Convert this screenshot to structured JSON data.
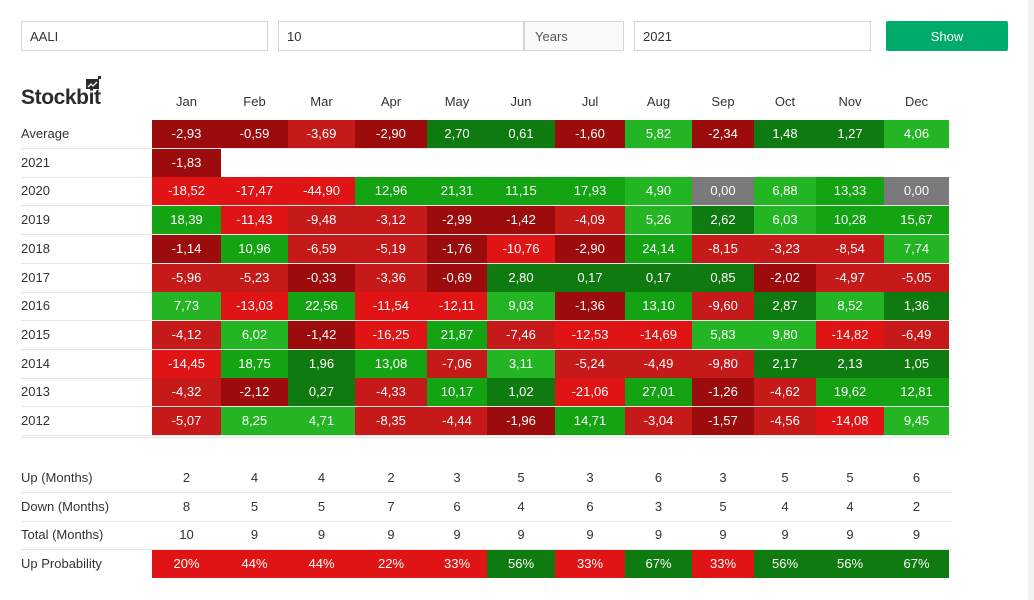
{
  "form": {
    "ticker": "AALI",
    "years_count": "10",
    "years_label": "Years",
    "year": "2021",
    "show_label": "Show"
  },
  "logo": {
    "text": "Stockbit"
  },
  "months": [
    "Jan",
    "Feb",
    "Mar",
    "Apr",
    "May",
    "Jun",
    "Jul",
    "Aug",
    "Sep",
    "Oct",
    "Nov",
    "Dec"
  ],
  "colors": {
    "pos_strong": "#13a313",
    "pos_mid": "#23b523",
    "pos_dark": "#0f7a0f",
    "neg_strong": "#e01414",
    "neg_mid": "#c61a1a",
    "neg_dark": "#9c0c0c",
    "zero": "#7a7a7a"
  },
  "rows": [
    {
      "label": "Average",
      "values": [
        "-2,93",
        "-0,59",
        "-3,69",
        "-2,90",
        "2,70",
        "0,61",
        "-1,60",
        "5,82",
        "-2,34",
        "1,48",
        "1,27",
        "4,06"
      ]
    },
    {
      "label": "2021",
      "values": [
        "-1,83"
      ]
    },
    {
      "label": "2020",
      "values": [
        "-18,52",
        "-17,47",
        "-44,90",
        "12,96",
        "21,31",
        "11,15",
        "17,93",
        "4,90",
        "0,00",
        "6,88",
        "13,33",
        "0,00"
      ]
    },
    {
      "label": "2019",
      "values": [
        "18,39",
        "-11,43",
        "-9,48",
        "-3,12",
        "-2,99",
        "-1,42",
        "-4,09",
        "5,26",
        "2,62",
        "6,03",
        "10,28",
        "15,67"
      ]
    },
    {
      "label": "2018",
      "values": [
        "-1,14",
        "10,96",
        "-6,59",
        "-5,19",
        "-1,76",
        "-10,76",
        "-2,90",
        "24,14",
        "-8,15",
        "-3,23",
        "-8,54",
        "7,74"
      ]
    },
    {
      "label": "2017",
      "values": [
        "-5,96",
        "-5,23",
        "-0,33",
        "-3,36",
        "-0,69",
        "2,80",
        "0,17",
        "0,17",
        "0,85",
        "-2,02",
        "-4,97",
        "-5,05"
      ]
    },
    {
      "label": "2016",
      "values": [
        "7,73",
        "-13,03",
        "22,56",
        "-11,54",
        "-12,11",
        "9,03",
        "-1,36",
        "13,10",
        "-9,60",
        "2,87",
        "8,52",
        "1,36"
      ]
    },
    {
      "label": "2015",
      "values": [
        "-4,12",
        "6,02",
        "-1,42",
        "-16,25",
        "21,87",
        "-7,46",
        "-12,53",
        "-14,69",
        "5,83",
        "9,80",
        "-14,82",
        "-6,49"
      ]
    },
    {
      "label": "2014",
      "values": [
        "-14,45",
        "18,75",
        "1,96",
        "13,08",
        "-7,06",
        "3,11",
        "-5,24",
        "-4,49",
        "-9,80",
        "2,17",
        "2,13",
        "1,05"
      ]
    },
    {
      "label": "2013",
      "values": [
        "-4,32",
        "-2,12",
        "0,27",
        "-4,33",
        "10,17",
        "1,02",
        "-21,06",
        "27,01",
        "-1,26",
        "-4,62",
        "19,62",
        "12,81"
      ]
    },
    {
      "label": "2012",
      "values": [
        "-5,07",
        "8,25",
        "4,71",
        "-8,35",
        "-4,44",
        "-1,96",
        "14,71",
        "-3,04",
        "-1,57",
        "-4,56",
        "-14,08",
        "9,45"
      ]
    }
  ],
  "summary": [
    {
      "label": "Up (Months)",
      "values": [
        "2",
        "4",
        "4",
        "2",
        "3",
        "5",
        "3",
        "6",
        "3",
        "5",
        "5",
        "6"
      ]
    },
    {
      "label": "Down (Months)",
      "values": [
        "8",
        "5",
        "5",
        "7",
        "6",
        "4",
        "6",
        "3",
        "5",
        "4",
        "4",
        "2"
      ]
    },
    {
      "label": "Total (Months)",
      "values": [
        "10",
        "9",
        "9",
        "9",
        "9",
        "9",
        "9",
        "9",
        "9",
        "9",
        "9",
        "9"
      ]
    }
  ],
  "probability": {
    "label": "Up Probability",
    "values": [
      "20%",
      "44%",
      "44%",
      "22%",
      "33%",
      "56%",
      "33%",
      "67%",
      "33%",
      "56%",
      "56%",
      "67%"
    ],
    "numeric": [
      20,
      44,
      44,
      22,
      33,
      56,
      33,
      67,
      33,
      56,
      56,
      67
    ]
  }
}
